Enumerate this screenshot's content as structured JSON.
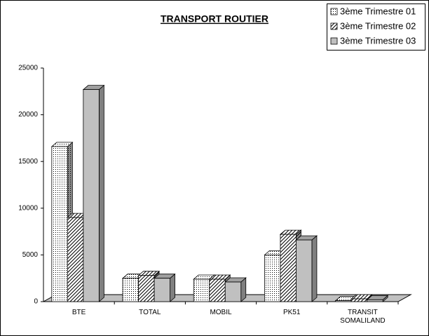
{
  "chart_data": {
    "type": "bar3d",
    "title": "TRANSPORT ROUTIER",
    "categories": [
      "BTE",
      "TOTAL",
      "MOBIL",
      "PK51",
      "TRANSIT SOMALILAND"
    ],
    "series": [
      {
        "name": "3ème Trimestre 01",
        "color": "#ffffff",
        "pattern": "dots",
        "values": [
          16600,
          2500,
          2400,
          5000,
          100
        ]
      },
      {
        "name": "3ème Trimestre 02",
        "color": "#ffffff",
        "pattern": "hatch",
        "values": [
          9000,
          2800,
          2400,
          7200,
          300
        ]
      },
      {
        "name": "3ème Trimestre 03",
        "color": "#c0c0c0",
        "pattern": "solid",
        "values": [
          22700,
          2500,
          2100,
          6600,
          200
        ]
      }
    ],
    "ylim": [
      0,
      25000
    ],
    "yticks": [
      0,
      5000,
      10000,
      15000,
      20000,
      25000
    ],
    "legend": "top-right"
  }
}
